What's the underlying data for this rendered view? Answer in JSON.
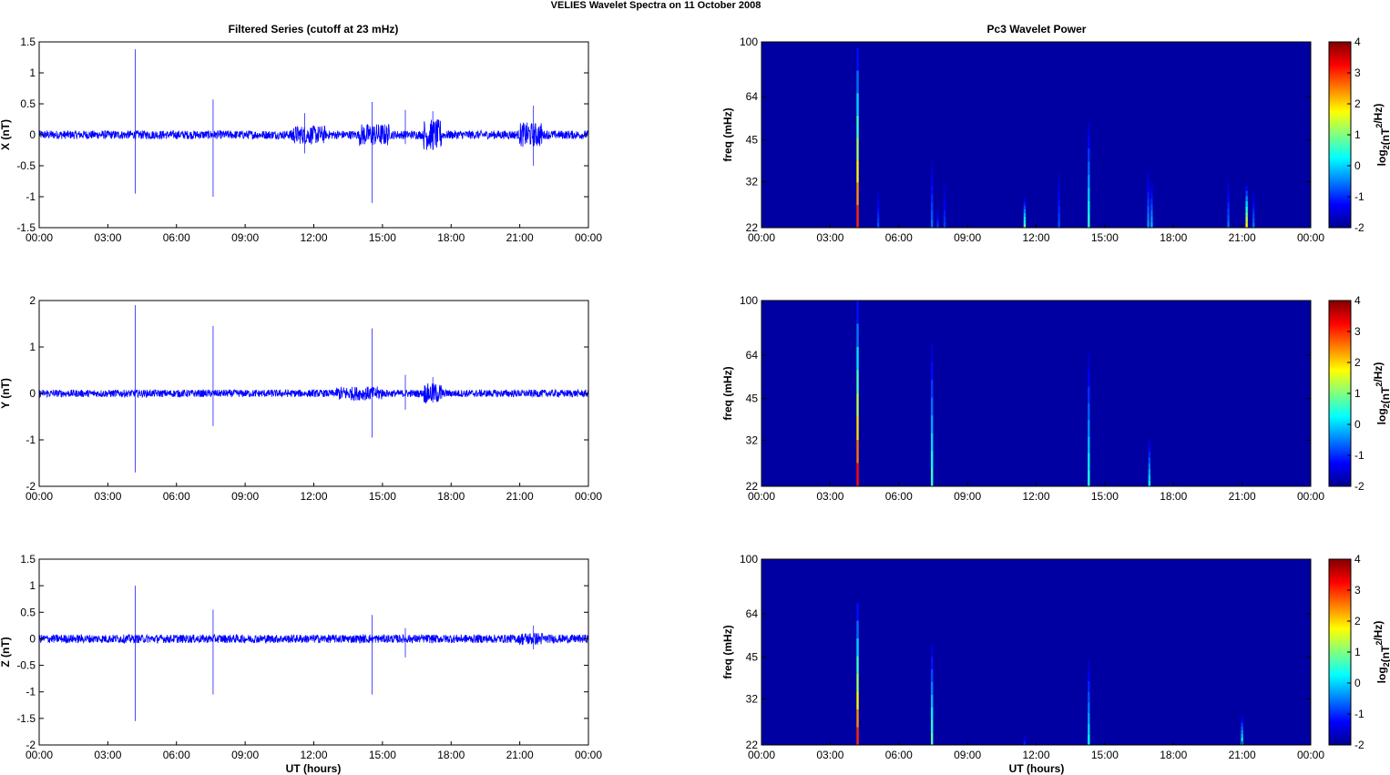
{
  "figure": {
    "title": "VELIES Wavelet Spectra on 11 October   2008",
    "left_column_title": "Filtered Series (cutoff at 23 mHz)",
    "right_column_title": "Pc3 Wavelet Power",
    "xlabel": "UT (hours)"
  },
  "time_ticks": [
    "00:00",
    "03:00",
    "06:00",
    "09:00",
    "12:00",
    "15:00",
    "18:00",
    "21:00",
    "00:00"
  ],
  "freq_ticks": [
    "100",
    "64",
    "45",
    "32",
    "22"
  ],
  "colorbar": {
    "label_prefix": "log",
    "label_sub": "2",
    "label_mid": "(nT",
    "label_sup": "2",
    "label_suffix": "/Hz)",
    "ticks": [
      "4",
      "3",
      "2",
      "1",
      "0",
      "-1",
      "-2"
    ],
    "range": [
      -2,
      4
    ]
  },
  "colors": {
    "series": "#0000ff",
    "background_power": "#00008f"
  },
  "chart_data": [
    {
      "type": "line",
      "component": "X",
      "ylabel": "X (nT)",
      "ylim": [
        -1.5,
        1.5
      ],
      "yticks": [
        "1.5",
        "1",
        "0.5",
        "0",
        "-0.5",
        "-1",
        "-1.5"
      ],
      "x_range_hours": [
        0,
        24
      ],
      "noise_amplitude": 0.07,
      "spikes": [
        {
          "t": 4.2,
          "max": 1.38,
          "min": -0.95
        },
        {
          "t": 7.6,
          "max": 0.57,
          "min": -1.0
        },
        {
          "t": 11.6,
          "max": 0.35,
          "min": -0.3
        },
        {
          "t": 14.55,
          "max": 0.53,
          "min": -1.1
        },
        {
          "t": 16.0,
          "max": 0.4,
          "min": -0.15
        },
        {
          "t": 17.2,
          "max": 0.38,
          "min": -0.25
        },
        {
          "t": 21.6,
          "max": 0.47,
          "min": -0.5
        }
      ],
      "bursts": [
        {
          "t0": 11.0,
          "t1": 12.5,
          "amp": 0.15
        },
        {
          "t0": 14.0,
          "t1": 15.3,
          "amp": 0.18
        },
        {
          "t0": 16.8,
          "t1": 17.6,
          "amp": 0.25
        },
        {
          "t0": 21.0,
          "t1": 22.0,
          "amp": 0.2
        }
      ]
    },
    {
      "type": "line",
      "component": "Y",
      "ylabel": "Y (nT)",
      "ylim": [
        -2,
        2
      ],
      "yticks": [
        "2",
        "1",
        "0",
        "-1",
        "-2"
      ],
      "x_range_hours": [
        0,
        24
      ],
      "noise_amplitude": 0.08,
      "spikes": [
        {
          "t": 4.2,
          "max": 1.9,
          "min": -1.7
        },
        {
          "t": 7.6,
          "max": 1.45,
          "min": -0.7
        },
        {
          "t": 14.55,
          "max": 1.4,
          "min": -0.95
        },
        {
          "t": 16.0,
          "max": 0.4,
          "min": -0.35
        },
        {
          "t": 17.2,
          "max": 0.35,
          "min": -0.2
        }
      ],
      "bursts": [
        {
          "t0": 13.0,
          "t1": 15.0,
          "amp": 0.15
        },
        {
          "t0": 16.8,
          "t1": 17.6,
          "amp": 0.22
        }
      ]
    },
    {
      "type": "line",
      "component": "Z",
      "ylabel": "Z (nT)",
      "ylim": [
        -2,
        1.5
      ],
      "yticks": [
        "1.5",
        "1",
        "0.5",
        "0",
        "-0.5",
        "-1",
        "-1.5",
        "-2"
      ],
      "x_range_hours": [
        0,
        24
      ],
      "noise_amplitude": 0.08,
      "spikes": [
        {
          "t": 4.2,
          "max": 1.0,
          "min": -1.55
        },
        {
          "t": 7.6,
          "max": 0.55,
          "min": -1.05
        },
        {
          "t": 14.55,
          "max": 0.45,
          "min": -1.05
        },
        {
          "t": 16.0,
          "max": 0.2,
          "min": -0.35
        },
        {
          "t": 21.6,
          "max": 0.25,
          "min": -0.2
        }
      ],
      "bursts": [
        {
          "t0": 21.0,
          "t1": 22.0,
          "amp": 0.12
        }
      ]
    },
    {
      "type": "heatmap",
      "component": "X",
      "ylabel": "freq (mHz)",
      "x_range_hours": [
        0,
        24
      ],
      "freq_range_mhz": [
        22,
        100
      ],
      "background_value": -1.8,
      "streaks": [
        {
          "t": 4.2,
          "fmax": 95,
          "value": 3.0
        },
        {
          "t": 5.1,
          "fmax": 30,
          "value": -0.8
        },
        {
          "t": 7.45,
          "fmax": 38,
          "value": -0.6
        },
        {
          "t": 7.7,
          "fmax": 26,
          "value": -0.9
        },
        {
          "t": 8.0,
          "fmax": 32,
          "value": -0.9
        },
        {
          "t": 11.5,
          "fmax": 28,
          "value": 0.8
        },
        {
          "t": 13.0,
          "fmax": 35,
          "value": -0.8
        },
        {
          "t": 14.3,
          "fmax": 52,
          "value": 0.5
        },
        {
          "t": 16.9,
          "fmax": 35,
          "value": -0.4
        },
        {
          "t": 17.05,
          "fmax": 32,
          "value": -0.2
        },
        {
          "t": 20.4,
          "fmax": 33,
          "value": -0.6
        },
        {
          "t": 21.2,
          "fmax": 31,
          "value": 1.8
        },
        {
          "t": 21.5,
          "fmax": 30,
          "value": -0.6
        }
      ]
    },
    {
      "type": "heatmap",
      "component": "Y",
      "ylabel": "freq (mHz)",
      "x_range_hours": [
        0,
        24
      ],
      "freq_range_mhz": [
        22,
        100
      ],
      "background_value": -1.8,
      "streaks": [
        {
          "t": 4.2,
          "fmax": 100,
          "value": 3.2
        },
        {
          "t": 7.45,
          "fmax": 70,
          "value": 0.6
        },
        {
          "t": 14.3,
          "fmax": 65,
          "value": 0.4
        },
        {
          "t": 16.95,
          "fmax": 32,
          "value": 0.2
        }
      ]
    },
    {
      "type": "heatmap",
      "component": "Z",
      "ylabel": "freq (mHz)",
      "x_range_hours": [
        0,
        24
      ],
      "freq_range_mhz": [
        22,
        100
      ],
      "background_value": -1.8,
      "streaks": [
        {
          "t": 4.2,
          "fmax": 70,
          "value": 3.0
        },
        {
          "t": 7.45,
          "fmax": 50,
          "value": 0.8
        },
        {
          "t": 11.5,
          "fmax": 24,
          "value": -1.0
        },
        {
          "t": 14.3,
          "fmax": 44,
          "value": 0.2
        },
        {
          "t": 21.0,
          "fmax": 28,
          "value": 0.4
        }
      ]
    }
  ]
}
